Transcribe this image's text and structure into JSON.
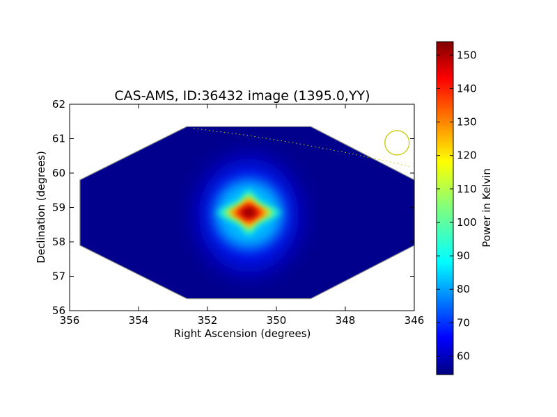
{
  "chart_data": {
    "type": "heatmap",
    "title": "CAS-AMS, ID:36432 image (1395.0,YY)",
    "xlabel": "Right Ascension (degrees)",
    "ylabel": "Declination (degrees)",
    "xlim": [
      356,
      346
    ],
    "ylim": [
      56,
      62
    ],
    "x_ticks": [
      "356",
      "354",
      "352",
      "350",
      "348",
      "346"
    ],
    "y_ticks": [
      "56",
      "57",
      "58",
      "59",
      "60",
      "61",
      "62"
    ],
    "colorbar": {
      "label": "Power in Kelvin",
      "colormap": "jet",
      "range": [
        54.5,
        154
      ],
      "ticks": [
        "60",
        "70",
        "80",
        "90",
        "100",
        "110",
        "120",
        "130",
        "140",
        "150"
      ]
    },
    "background_level_kelvin": 57,
    "peak": {
      "ra": 350.8,
      "dec": 58.85,
      "value_kelvin": 154
    },
    "footprint_polygon_deg": [
      [
        355.7,
        59.8
      ],
      [
        352.6,
        61.35
      ],
      [
        349.0,
        61.35
      ],
      [
        346.0,
        59.8
      ],
      [
        346.0,
        57.9
      ],
      [
        349.0,
        56.35
      ],
      [
        352.6,
        56.35
      ],
      [
        355.7,
        57.9
      ]
    ],
    "horizon_curve_deg": [
      [
        352.4,
        61.3
      ],
      [
        351.0,
        61.12
      ],
      [
        349.5,
        60.88
      ],
      [
        348.0,
        60.6
      ],
      [
        346.5,
        60.28
      ],
      [
        346.1,
        60.17
      ]
    ],
    "source_circle": {
      "ra": 346.5,
      "dec": 60.88
    },
    "colors": {
      "overlay": "#c8c800",
      "footprint_edge": "#8a8a8a"
    }
  }
}
